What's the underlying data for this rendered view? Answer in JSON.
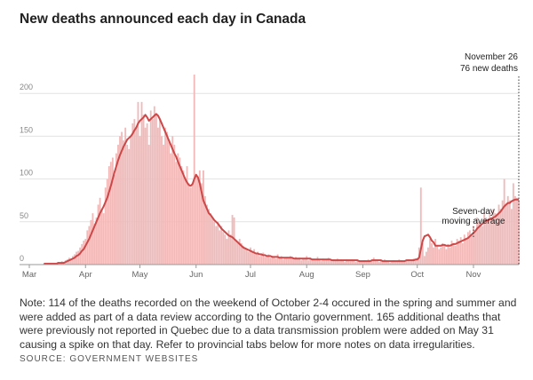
{
  "chart_data": {
    "type": "bar",
    "title": "New deaths announced each day in Canada",
    "annotations": {
      "date": "November 26",
      "deaths": "76 new deaths",
      "average": [
        "Seven-day",
        "moving average"
      ]
    },
    "note": "Note: 114 of the deaths recorded on the weekend of October 2-4 occured in the spring and summer and were added as part of a data review according to the Ontario government. 165 additional deaths that were previously not reported in Quebec due to a data transmission problem were added on May 31 causing a spike on that day. Refer to provincial tabs below for more notes on data irregularities.",
    "source": "SOURCE: GOVERNMENT WEBSITES",
    "xlim": [
      0,
      270
    ],
    "xticks": [
      {
        "value": 0,
        "label": "Mar"
      },
      {
        "value": 31,
        "label": "Apr"
      },
      {
        "value": 61,
        "label": "May"
      },
      {
        "value": 92,
        "label": "Jun"
      },
      {
        "value": 122,
        "label": "Jul"
      },
      {
        "value": 153,
        "label": "Aug"
      },
      {
        "value": 184,
        "label": "Sep"
      },
      {
        "value": 214,
        "label": "Oct"
      },
      {
        "value": 245,
        "label": "Nov"
      }
    ],
    "ylim": [
      0,
      250
    ],
    "yticks": [
      0,
      50,
      100,
      150,
      200
    ],
    "grid": true,
    "x": [
      8,
      9,
      10,
      11,
      12,
      13,
      14,
      15,
      16,
      17,
      18,
      19,
      20,
      21,
      22,
      23,
      24,
      25,
      26,
      27,
      28,
      29,
      30,
      31,
      32,
      33,
      34,
      35,
      36,
      37,
      38,
      39,
      40,
      41,
      42,
      43,
      44,
      45,
      46,
      47,
      48,
      49,
      50,
      51,
      52,
      53,
      54,
      55,
      56,
      57,
      58,
      59,
      60,
      61,
      62,
      63,
      64,
      65,
      66,
      67,
      68,
      69,
      70,
      71,
      72,
      73,
      74,
      75,
      76,
      77,
      78,
      79,
      80,
      81,
      82,
      83,
      84,
      85,
      86,
      87,
      88,
      89,
      90,
      91,
      92,
      93,
      94,
      95,
      96,
      97,
      98,
      99,
      100,
      101,
      102,
      103,
      104,
      105,
      106,
      107,
      108,
      109,
      110,
      111,
      112,
      113,
      114,
      115,
      116,
      117,
      118,
      119,
      120,
      121,
      122,
      123,
      124,
      125,
      126,
      127,
      128,
      129,
      130,
      131,
      132,
      133,
      134,
      135,
      136,
      137,
      138,
      139,
      140,
      141,
      142,
      143,
      144,
      145,
      146,
      147,
      148,
      149,
      150,
      151,
      152,
      153,
      154,
      155,
      156,
      157,
      158,
      159,
      160,
      161,
      162,
      163,
      164,
      165,
      166,
      167,
      168,
      169,
      170,
      171,
      172,
      173,
      174,
      175,
      176,
      177,
      178,
      179,
      180,
      181,
      182,
      183,
      184,
      185,
      186,
      187,
      188,
      189,
      190,
      191,
      192,
      193,
      194,
      195,
      196,
      197,
      198,
      199,
      200,
      201,
      202,
      203,
      204,
      205,
      206,
      207,
      208,
      209,
      210,
      211,
      212,
      213,
      214,
      215,
      216,
      217,
      218,
      219,
      220,
      221,
      222,
      223,
      224,
      225,
      226,
      227,
      228,
      229,
      230,
      231,
      232,
      233,
      234,
      235,
      236,
      237,
      238,
      239,
      240,
      241,
      242,
      243,
      244,
      245,
      246,
      247,
      248,
      249,
      250,
      251,
      252,
      253,
      254,
      255,
      256,
      257,
      258,
      259,
      260,
      261,
      262,
      263,
      264,
      265,
      266,
      267,
      268,
      269,
      270
    ],
    "series": [
      {
        "type": "bar",
        "color": "#f2b9b9",
        "values": [
          1,
          0,
          1,
          1,
          0,
          1,
          2,
          1,
          3,
          2,
          4,
          3,
          5,
          6,
          8,
          7,
          10,
          12,
          15,
          16,
          20,
          24,
          28,
          30,
          40,
          45,
          52,
          60,
          48,
          55,
          70,
          78,
          65,
          60,
          90,
          100,
          115,
          120,
          125,
          105,
          130,
          140,
          150,
          155,
          145,
          160,
          140,
          135,
          150,
          165,
          170,
          160,
          190,
          150,
          190,
          175,
          160,
          165,
          140,
          180,
          170,
          185,
          175,
          160,
          170,
          150,
          140,
          160,
          155,
          145,
          130,
          150,
          140,
          120,
          130,
          125,
          115,
          110,
          100,
          115,
          95,
          90,
          95,
          222,
          105,
          100,
          110,
          95,
          110,
          80,
          70,
          65,
          60,
          55,
          50,
          45,
          50,
          40,
          45,
          38,
          35,
          30,
          40,
          35,
          58,
          55,
          28,
          25,
          30,
          25,
          22,
          20,
          18,
          15,
          20,
          15,
          18,
          12,
          15,
          10,
          12,
          14,
          9,
          10,
          12,
          8,
          10,
          9,
          7,
          12,
          8,
          10,
          6,
          8,
          9,
          7,
          10,
          8,
          6,
          9,
          7,
          8,
          5,
          7,
          6,
          10,
          5,
          8,
          6,
          7,
          5,
          9,
          6,
          4,
          7,
          5,
          6,
          8,
          5,
          4,
          6,
          5,
          7,
          4,
          6,
          5,
          3,
          6,
          5,
          4,
          6,
          5,
          3,
          4,
          5,
          4,
          4,
          5,
          3,
          6,
          4,
          5,
          8,
          6,
          4,
          3,
          5,
          4,
          6,
          5,
          3,
          2,
          4,
          5,
          3,
          4,
          6,
          5,
          4,
          3,
          5,
          6,
          4,
          5,
          7,
          6,
          8,
          20,
          90,
          25,
          10,
          15,
          20,
          30,
          25,
          20,
          30,
          22,
          18,
          20,
          25,
          22,
          18,
          24,
          20,
          28,
          25,
          22,
          30,
          28,
          32,
          25,
          35,
          30,
          38,
          40,
          35,
          45,
          40,
          55,
          50,
          48,
          45,
          60,
          55,
          50,
          62,
          55,
          65,
          60,
          58,
          70,
          65,
          75,
          100,
          70,
          80,
          75,
          65,
          95,
          80,
          78,
          76
        ]
      },
      {
        "type": "line",
        "color": "#cc4848",
        "values": [
          1,
          1,
          1,
          1,
          1,
          1,
          1,
          1,
          2,
          2,
          2,
          2,
          3,
          4,
          5,
          6,
          7,
          8,
          10,
          11,
          13,
          16,
          18,
          22,
          26,
          30,
          35,
          40,
          45,
          50,
          55,
          60,
          64,
          68,
          73,
          78,
          85,
          92,
          100,
          108,
          115,
          122,
          128,
          133,
          138,
          142,
          146,
          148,
          150,
          153,
          157,
          160,
          165,
          168,
          170,
          172,
          175,
          172,
          168,
          170,
          172,
          174,
          176,
          174,
          170,
          165,
          160,
          155,
          150,
          145,
          140,
          135,
          130,
          126,
          120,
          115,
          110,
          105,
          100,
          96,
          93,
          92,
          94,
          100,
          105,
          102,
          95,
          85,
          75,
          70,
          65,
          60,
          58,
          55,
          52,
          50,
          48,
          45,
          42,
          40,
          38,
          36,
          34,
          33,
          32,
          30,
          28,
          26,
          24,
          22,
          20,
          19,
          18,
          17,
          16,
          15,
          14,
          13,
          13,
          12,
          12,
          11,
          11,
          10,
          10,
          10,
          9,
          9,
          9,
          9,
          8,
          8,
          8,
          8,
          8,
          8,
          8,
          8,
          7,
          7,
          7,
          7,
          7,
          7,
          7,
          7,
          7,
          7,
          6,
          6,
          6,
          6,
          6,
          6,
          6,
          6,
          6,
          6,
          6,
          5,
          5,
          5,
          5,
          5,
          5,
          5,
          5,
          5,
          5,
          5,
          5,
          5,
          5,
          5,
          4,
          4,
          4,
          4,
          4,
          4,
          4,
          5,
          5,
          5,
          5,
          5,
          5,
          4,
          4,
          4,
          4,
          4,
          4,
          4,
          4,
          4,
          4,
          4,
          4,
          4,
          5,
          5,
          5,
          5,
          5,
          6,
          6,
          8,
          18,
          28,
          33,
          34,
          35,
          32,
          28,
          26,
          22,
          22,
          22,
          22,
          23,
          23,
          22,
          22,
          22,
          23,
          24,
          24,
          25,
          26,
          27,
          28,
          29,
          30,
          31,
          33,
          35,
          37,
          39,
          42,
          44,
          46,
          48,
          50,
          51,
          52,
          53,
          54,
          55,
          56,
          58,
          60,
          62,
          65,
          68,
          70,
          72,
          72,
          74,
          75,
          76,
          76,
          76
        ]
      }
    ]
  }
}
